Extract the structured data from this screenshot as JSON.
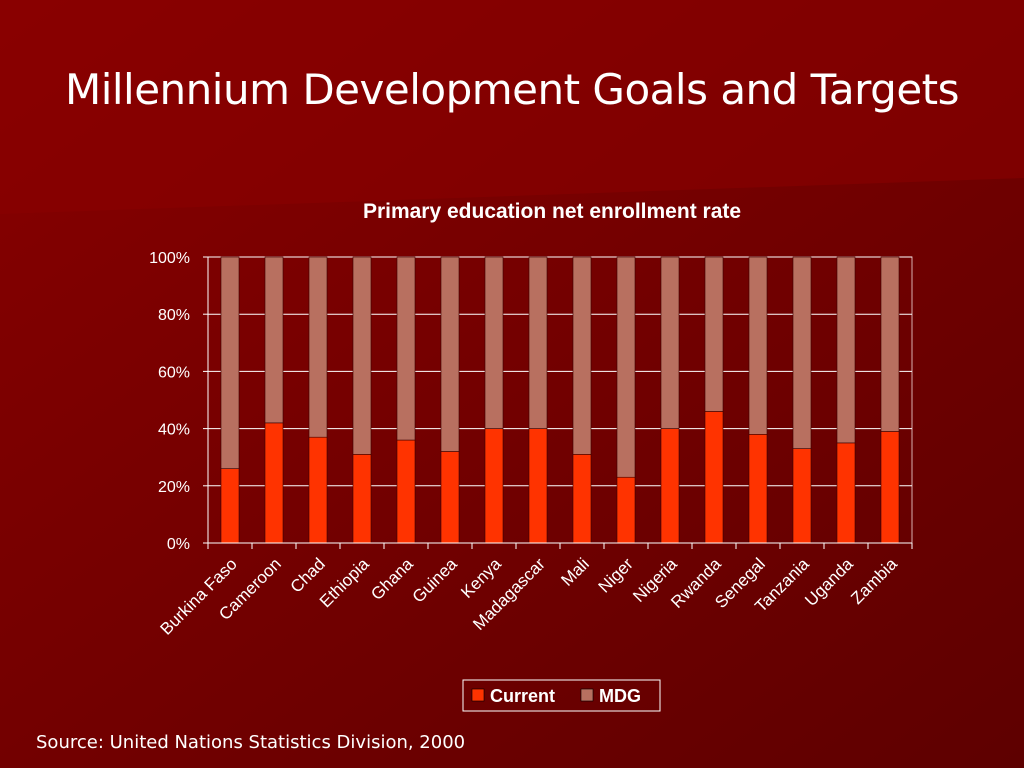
{
  "slide": {
    "title": "Millennium Development Goals and Targets",
    "source": "Source: United Nations Statistics Division, 2000"
  },
  "colors": {
    "background": "#6e0000",
    "current": "#ff3300",
    "mdg": "#b87060",
    "grid": "#ffffff",
    "text": "#ffffff"
  },
  "chart_data": {
    "type": "bar",
    "stacked": true,
    "percent_stacked": true,
    "title": "Primary education net enrollment rate",
    "categories": [
      "Burkina Faso",
      "Cameroon",
      "Chad",
      "Ethiopia",
      "Ghana",
      "Guinea",
      "Kenya",
      "Madagascar",
      "Mali",
      "Niger",
      "Nigeria",
      "Rwanda",
      "Senegal",
      "Tanzania",
      "Uganda",
      "Zambia"
    ],
    "series": [
      {
        "name": "Current",
        "values": [
          26,
          42,
          37,
          31,
          36,
          32,
          40,
          40,
          31,
          23,
          40,
          46,
          38,
          33,
          35,
          39
        ]
      },
      {
        "name": "MDG",
        "values": [
          74,
          58,
          63,
          69,
          64,
          68,
          60,
          60,
          69,
          77,
          60,
          54,
          62,
          67,
          65,
          61
        ]
      }
    ],
    "ylim": [
      0,
      100
    ],
    "yticks": [
      "0%",
      "20%",
      "40%",
      "60%",
      "80%",
      "100%"
    ],
    "grid": true,
    "legend_position": "bottom"
  }
}
